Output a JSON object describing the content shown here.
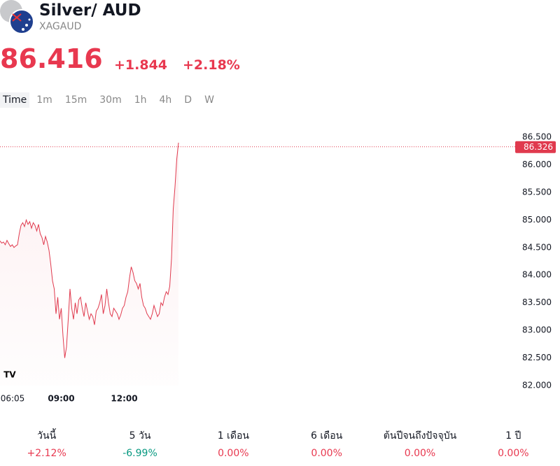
{
  "header": {
    "title": "Silver/ AUD",
    "symbol": "XAGAUD",
    "price": "86.416",
    "change": "+1.844",
    "change_percent": "+2.18%"
  },
  "timeframes": [
    "Time",
    "1m",
    "15m",
    "30m",
    "1h",
    "4h",
    "D",
    "W"
  ],
  "chart_data": {
    "type": "line",
    "categories": [
      "06:05",
      null,
      null,
      null,
      null,
      null,
      null,
      null,
      null,
      null,
      null,
      null,
      null,
      null,
      null,
      null,
      null,
      null,
      null,
      null,
      null,
      null,
      null,
      null,
      null,
      null,
      null,
      null,
      null,
      null,
      null,
      null,
      null,
      null,
      null,
      "09:00",
      null,
      null,
      null,
      null,
      null,
      null,
      null,
      null,
      null,
      null,
      null,
      null,
      null,
      null,
      null,
      null,
      null,
      null,
      null,
      null,
      null,
      null,
      null,
      null,
      null,
      null,
      null,
      null,
      null,
      null,
      null,
      null,
      null,
      null,
      null,
      "12:00",
      null,
      null,
      null,
      null,
      null,
      null,
      null,
      null,
      null,
      null,
      null,
      null,
      null,
      null,
      null,
      null,
      null,
      null,
      null,
      null,
      null,
      null,
      null,
      null,
      null,
      null,
      null,
      null,
      null,
      null,
      null
    ],
    "series": [
      {
        "color": "#e03a4e",
        "values": [
          84.62,
          84.58,
          84.6,
          84.55,
          84.63,
          84.57,
          84.52,
          84.55,
          84.5,
          84.53,
          84.55,
          84.75,
          84.9,
          84.95,
          84.88,
          85.0,
          84.92,
          84.97,
          84.85,
          84.95,
          84.9,
          84.8,
          84.92,
          84.75,
          84.68,
          84.55,
          84.7,
          84.6,
          84.45,
          84.2,
          83.9,
          83.75,
          83.3,
          83.6,
          83.2,
          83.4,
          82.9,
          82.5,
          82.7,
          83.2,
          83.75,
          83.4,
          83.2,
          83.5,
          83.3,
          83.55,
          83.6,
          83.4,
          83.25,
          83.5,
          83.35,
          83.2,
          83.3,
          83.25,
          83.1,
          83.35,
          83.4,
          83.5,
          83.65,
          83.3,
          83.45,
          83.75,
          83.5,
          83.3,
          83.25,
          83.4,
          83.35,
          83.3,
          83.2,
          83.28,
          83.4,
          83.45,
          83.6,
          83.7,
          83.95,
          84.15,
          84.05,
          83.9,
          83.85,
          83.75,
          83.85,
          83.6,
          83.45,
          83.4,
          83.3,
          83.25,
          83.2,
          83.3,
          83.45,
          83.35,
          83.25,
          83.3,
          83.5,
          83.45,
          83.6,
          83.7,
          83.65,
          83.8,
          84.3,
          85.2,
          85.6,
          86.1,
          86.4
        ]
      }
    ],
    "ylim": [
      82,
      86.5
    ],
    "yticks": [
      {
        "value": 82,
        "label": "82.000"
      },
      {
        "value": 82.5,
        "label": "82.500"
      },
      {
        "value": 83,
        "label": "83.000"
      },
      {
        "value": 83.5,
        "label": "83.500"
      },
      {
        "value": 84,
        "label": "84.000"
      },
      {
        "value": 84.5,
        "label": "84.500"
      },
      {
        "value": 85,
        "label": "85.000"
      },
      {
        "value": 85.5,
        "label": "85.500"
      },
      {
        "value": 86,
        "label": "86.000"
      },
      {
        "value": 86.5,
        "label": "86.500"
      }
    ],
    "last_price": {
      "value": 86.326,
      "label": "86.326"
    }
  },
  "performance": [
    {
      "period": "วันนี้",
      "value": "+2.12%"
    },
    {
      "period": "5 วัน",
      "value": "-6.99%"
    },
    {
      "period": "1 เดือน",
      "value": "0.00%"
    },
    {
      "period": "6 เดือน",
      "value": "0.00%"
    },
    {
      "period": "ต้นปีจนถึงปัจจุบัน",
      "value": "0.00%"
    },
    {
      "period": "1 ปี",
      "value": "0.00%"
    }
  ]
}
